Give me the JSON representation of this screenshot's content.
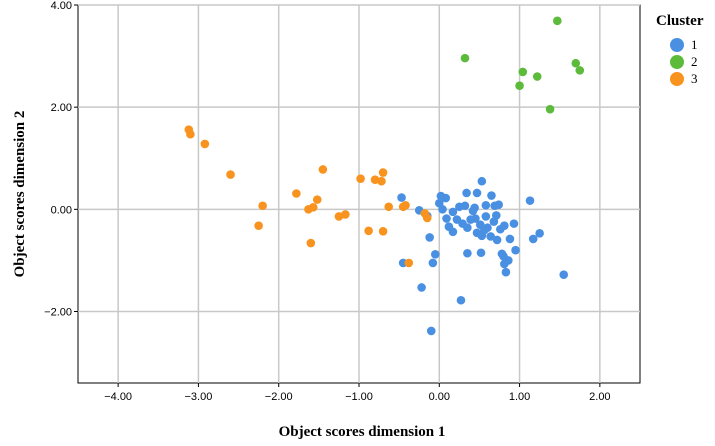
{
  "chart_data": {
    "type": "scatter",
    "xlabel": "Object scores dimension 1",
    "ylabel": "Object scores dimension 2",
    "xlim": [
      -4.5,
      2.5
    ],
    "ylim": [
      -3.4,
      4.0
    ],
    "xticks": [
      -4.0,
      -3.0,
      -2.0,
      -1.0,
      0.0,
      1.0,
      2.0
    ],
    "yticks": [
      -2.0,
      0.0,
      2.0,
      4.0
    ],
    "xtick_labels": [
      "−4.00",
      "−3.00",
      "−2.00",
      "−1.00",
      "0.00",
      "1.00",
      "2.00"
    ],
    "ytick_labels": [
      "−2.00",
      "0.00",
      "2.00",
      "4.00"
    ],
    "grid": true,
    "legend": {
      "title": "Cluster",
      "position": "right",
      "entries": [
        {
          "label": "1",
          "color": "#4A90E2"
        },
        {
          "label": "2",
          "color": "#5DBB3C"
        },
        {
          "label": "3",
          "color": "#F7931E"
        }
      ]
    },
    "series": [
      {
        "name": "1",
        "color": "#4A90E2",
        "points": [
          [
            -0.47,
            0.23
          ],
          [
            -0.25,
            -0.02
          ],
          [
            -0.15,
            -0.13
          ],
          [
            -0.12,
            -0.55
          ],
          [
            -0.05,
            -0.88
          ],
          [
            -0.08,
            -1.05
          ],
          [
            -0.45,
            -1.05
          ],
          [
            -0.22,
            -1.53
          ],
          [
            -0.1,
            -2.38
          ],
          [
            0.27,
            -1.78
          ],
          [
            0.0,
            0.12
          ],
          [
            0.02,
            0.26
          ],
          [
            0.08,
            0.22
          ],
          [
            0.04,
            0.0
          ],
          [
            0.09,
            -0.18
          ],
          [
            0.12,
            -0.34
          ],
          [
            0.17,
            -0.05
          ],
          [
            0.17,
            -0.44
          ],
          [
            0.22,
            -0.2
          ],
          [
            0.25,
            0.05
          ],
          [
            0.29,
            -0.28
          ],
          [
            0.32,
            0.07
          ],
          [
            0.35,
            -0.36
          ],
          [
            0.34,
            0.32
          ],
          [
            0.39,
            -0.2
          ],
          [
            0.42,
            -0.03
          ],
          [
            0.44,
            0.03
          ],
          [
            0.47,
            0.32
          ],
          [
            0.47,
            -0.46
          ],
          [
            0.51,
            -0.3
          ],
          [
            0.53,
            0.55
          ],
          [
            0.53,
            -0.52
          ],
          [
            0.56,
            -0.41
          ],
          [
            0.58,
            -0.14
          ],
          [
            0.58,
            0.08
          ],
          [
            0.6,
            -0.36
          ],
          [
            0.64,
            -0.53
          ],
          [
            0.65,
            0.27
          ],
          [
            0.68,
            -0.24
          ],
          [
            0.69,
            0.07
          ],
          [
            0.71,
            -0.12
          ],
          [
            0.72,
            -0.6
          ],
          [
            0.74,
            0.09
          ],
          [
            0.76,
            -0.39
          ],
          [
            0.78,
            -0.87
          ],
          [
            0.8,
            -0.92
          ],
          [
            0.81,
            -0.32
          ],
          [
            0.81,
            -1.07
          ],
          [
            0.83,
            -1.23
          ],
          [
            0.86,
            -1.0
          ],
          [
            0.88,
            -0.58
          ],
          [
            0.93,
            -0.28
          ],
          [
            0.95,
            -0.8
          ],
          [
            1.13,
            0.17
          ],
          [
            1.17,
            -0.58
          ],
          [
            1.25,
            -0.47
          ],
          [
            1.55,
            -1.28
          ],
          [
            0.52,
            -0.85
          ],
          [
            0.35,
            -0.86
          ],
          [
            0.45,
            -0.18
          ]
        ]
      },
      {
        "name": "2",
        "color": "#5DBB3C",
        "points": [
          [
            0.32,
            2.96
          ],
          [
            1.0,
            2.42
          ],
          [
            1.04,
            2.69
          ],
          [
            1.22,
            2.6
          ],
          [
            1.38,
            1.96
          ],
          [
            1.47,
            3.69
          ],
          [
            1.7,
            2.86
          ],
          [
            1.75,
            2.72
          ]
        ]
      },
      {
        "name": "3",
        "color": "#F7931E",
        "points": [
          [
            -3.12,
            1.56
          ],
          [
            -3.1,
            1.47
          ],
          [
            -2.92,
            1.28
          ],
          [
            -2.6,
            0.68
          ],
          [
            -2.2,
            0.07
          ],
          [
            -2.25,
            -0.32
          ],
          [
            -1.78,
            0.31
          ],
          [
            -1.63,
            0.0
          ],
          [
            -1.57,
            0.04
          ],
          [
            -1.52,
            0.19
          ],
          [
            -1.45,
            0.78
          ],
          [
            -1.6,
            -0.66
          ],
          [
            -1.25,
            -0.14
          ],
          [
            -1.17,
            -0.1
          ],
          [
            -0.98,
            0.6
          ],
          [
            -0.88,
            -0.42
          ],
          [
            -0.8,
            0.58
          ],
          [
            -0.72,
            0.55
          ],
          [
            -0.7,
            0.72
          ],
          [
            -0.7,
            -0.43
          ],
          [
            -0.63,
            0.05
          ],
          [
            -0.45,
            0.05
          ],
          [
            -0.42,
            0.08
          ],
          [
            -0.38,
            -1.05
          ],
          [
            -0.18,
            -0.08
          ],
          [
            -0.15,
            -0.17
          ]
        ]
      }
    ]
  }
}
